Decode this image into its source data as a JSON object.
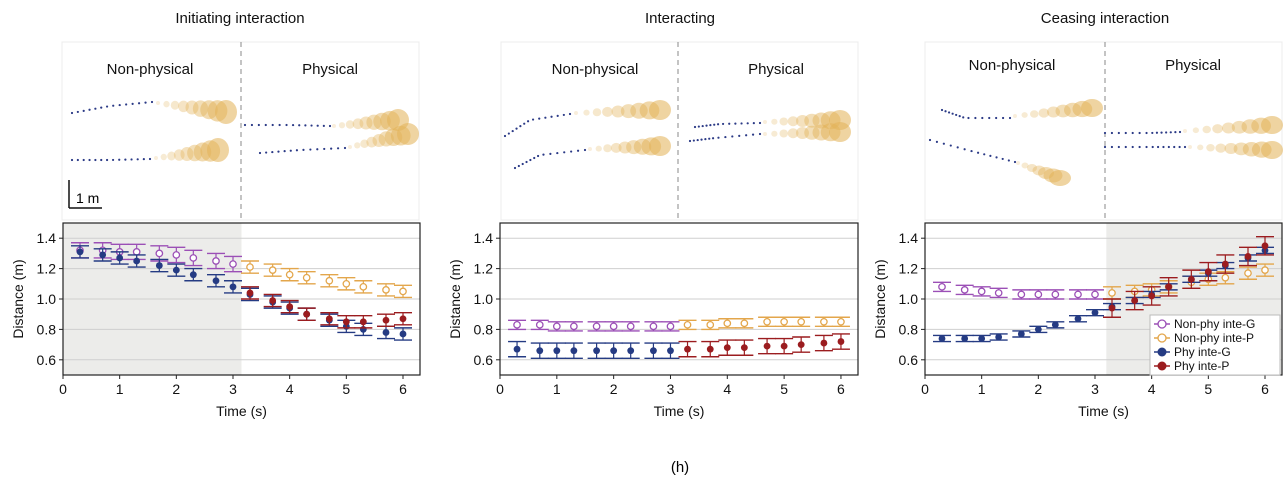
{
  "caption": "(h)",
  "scale_bar_label": "1 m",
  "colors": {
    "nonphy_g": "#9b4fb6",
    "nonphy_p": "#e3a64b",
    "phy_g": "#253b83",
    "phy_p": "#9b1c1f",
    "grid": "#cfcfcf",
    "shade": "#ececea",
    "traj_dot": "#2b3a86",
    "blob": "#e2b35a"
  },
  "panels": [
    {
      "title": "Initiating interaction",
      "region_left": "Non-physical",
      "region_right": "Physical",
      "show_scale_bar": true
    },
    {
      "title": "Interacting",
      "region_left": "Non-physical",
      "region_right": "Physical",
      "show_scale_bar": false
    },
    {
      "title": "Ceasing interaction",
      "region_left": "Non-physical",
      "region_right": "Physical",
      "show_scale_bar": false
    }
  ],
  "chart_data": [
    {
      "type": "scatter",
      "xlabel": "Time (s)",
      "ylabel": "Distance (m)",
      "xlim": [
        0,
        6.3
      ],
      "ylim": [
        0.5,
        1.5
      ],
      "x_ticks": [
        0,
        1,
        2,
        3,
        4,
        5,
        6
      ],
      "y_ticks": [
        0.6,
        0.8,
        1.0,
        1.2,
        1.4
      ],
      "y_tick_labels": [
        "0.6",
        "0.8",
        "1.0",
        "1.2",
        "1.4"
      ],
      "grid": true,
      "shaded_x": [
        0,
        3.15
      ],
      "series": [
        {
          "color_key": "nonphy_g",
          "marker": "open",
          "x": [
            0.3,
            0.7,
            1.0,
            1.3,
            1.7,
            2.0,
            2.3,
            2.7,
            3.0
          ],
          "y": [
            1.32,
            1.32,
            1.31,
            1.31,
            1.3,
            1.29,
            1.27,
            1.25,
            1.23
          ],
          "err": 0.05
        },
        {
          "color_key": "nonphy_p",
          "marker": "open",
          "x": [
            3.3,
            3.7,
            4.0,
            4.3,
            4.7,
            5.0,
            5.3,
            5.7,
            6.0
          ],
          "y": [
            1.21,
            1.19,
            1.16,
            1.14,
            1.12,
            1.1,
            1.08,
            1.06,
            1.05
          ],
          "err": 0.04
        },
        {
          "color_key": "phy_g",
          "marker": "filled",
          "x": [
            0.3,
            0.7,
            1.0,
            1.3,
            1.7,
            2.0,
            2.3,
            2.7,
            3.0,
            3.3,
            3.7,
            4.0,
            4.3,
            4.7,
            5.0,
            5.3,
            5.7,
            6.0
          ],
          "y": [
            1.31,
            1.29,
            1.27,
            1.25,
            1.22,
            1.19,
            1.16,
            1.12,
            1.08,
            1.03,
            0.98,
            0.94,
            0.9,
            0.86,
            0.82,
            0.8,
            0.78,
            0.77
          ],
          "err": 0.04
        },
        {
          "color_key": "phy_p",
          "marker": "filled",
          "x": [
            3.3,
            3.7,
            4.0,
            4.3,
            4.7,
            5.0,
            5.3,
            5.7,
            6.0
          ],
          "y": [
            1.04,
            0.99,
            0.95,
            0.9,
            0.87,
            0.85,
            0.85,
            0.86,
            0.87
          ],
          "err": 0.04
        }
      ]
    },
    {
      "type": "scatter",
      "xlabel": "Time (s)",
      "ylabel": "Distance (m)",
      "xlim": [
        0,
        6.3
      ],
      "ylim": [
        0.5,
        1.5
      ],
      "x_ticks": [
        0,
        1,
        2,
        3,
        4,
        5,
        6
      ],
      "y_ticks": [
        0.6,
        0.8,
        1.0,
        1.2,
        1.4
      ],
      "y_tick_labels": [
        "0.6",
        "0.8",
        "1.0",
        "1.2",
        "1.4"
      ],
      "grid": true,
      "shaded_x": null,
      "series": [
        {
          "color_key": "nonphy_g",
          "marker": "open",
          "x": [
            0.3,
            0.7,
            1.0,
            1.3,
            1.7,
            2.0,
            2.3,
            2.7,
            3.0
          ],
          "y": [
            0.83,
            0.83,
            0.82,
            0.82,
            0.82,
            0.82,
            0.82,
            0.82,
            0.82
          ],
          "err": 0.03
        },
        {
          "color_key": "nonphy_p",
          "marker": "open",
          "x": [
            3.3,
            3.7,
            4.0,
            4.3,
            4.7,
            5.0,
            5.3,
            5.7,
            6.0
          ],
          "y": [
            0.83,
            0.83,
            0.84,
            0.84,
            0.85,
            0.85,
            0.85,
            0.85,
            0.85
          ],
          "err": 0.03
        },
        {
          "color_key": "phy_g",
          "marker": "filled",
          "x": [
            0.3,
            0.7,
            1.0,
            1.3,
            1.7,
            2.0,
            2.3,
            2.7,
            3.0
          ],
          "y": [
            0.67,
            0.66,
            0.66,
            0.66,
            0.66,
            0.66,
            0.66,
            0.66,
            0.66
          ],
          "err": 0.05
        },
        {
          "color_key": "phy_p",
          "marker": "filled",
          "x": [
            3.3,
            3.7,
            4.0,
            4.3,
            4.7,
            5.0,
            5.3,
            5.7,
            6.0
          ],
          "y": [
            0.67,
            0.67,
            0.68,
            0.68,
            0.69,
            0.69,
            0.7,
            0.71,
            0.72
          ],
          "err": 0.05
        }
      ]
    },
    {
      "type": "scatter",
      "xlabel": "Time (s)",
      "ylabel": "Distance (m)",
      "xlim": [
        0,
        6.3
      ],
      "ylim": [
        0.5,
        1.5
      ],
      "x_ticks": [
        0,
        1,
        2,
        3,
        4,
        5,
        6
      ],
      "y_ticks": [
        0.6,
        0.8,
        1.0,
        1.2,
        1.4
      ],
      "y_tick_labels": [
        "0.6",
        "0.8",
        "1.0",
        "1.2",
        "1.4"
      ],
      "grid": true,
      "shaded_x": [
        3.2,
        6.3
      ],
      "legend_placement": "bottom-right",
      "legend": [
        {
          "label": "Non-phy inte-G",
          "color_key": "nonphy_g",
          "marker": "open"
        },
        {
          "label": "Non-phy inte-P",
          "color_key": "nonphy_p",
          "marker": "open"
        },
        {
          "label": "Phy inte-G",
          "color_key": "phy_g",
          "marker": "filled"
        },
        {
          "label": "Phy inte-P",
          "color_key": "phy_p",
          "marker": "filled"
        }
      ],
      "series": [
        {
          "color_key": "nonphy_g",
          "marker": "open",
          "x": [
            0.3,
            0.7,
            1.0,
            1.3,
            1.7,
            2.0,
            2.3,
            2.7,
            3.0
          ],
          "y": [
            1.08,
            1.06,
            1.05,
            1.04,
            1.03,
            1.03,
            1.03,
            1.03,
            1.03
          ],
          "err": 0.03
        },
        {
          "color_key": "nonphy_p",
          "marker": "open",
          "x": [
            3.3,
            3.7,
            4.0,
            4.3,
            4.7,
            5.0,
            5.3,
            5.7,
            6.0
          ],
          "y": [
            1.04,
            1.05,
            1.06,
            1.08,
            1.11,
            1.13,
            1.14,
            1.17,
            1.19
          ],
          "err": 0.04
        },
        {
          "color_key": "phy_g",
          "marker": "filled",
          "x": [
            0.3,
            0.7,
            1.0,
            1.3,
            1.7,
            2.0,
            2.3,
            2.7,
            3.0,
            3.3,
            3.7,
            4.0,
            4.3,
            4.7,
            5.0,
            5.3,
            5.7,
            6.0
          ],
          "y": [
            0.74,
            0.74,
            0.74,
            0.75,
            0.77,
            0.8,
            0.83,
            0.87,
            0.91,
            0.95,
            0.99,
            1.03,
            1.08,
            1.13,
            1.17,
            1.22,
            1.27,
            1.32
          ],
          "err": 0.02
        },
        {
          "color_key": "phy_p",
          "marker": "filled",
          "x": [
            3.3,
            3.7,
            4.0,
            4.3,
            4.7,
            5.0,
            5.3,
            5.7,
            6.0
          ],
          "y": [
            0.94,
            0.99,
            1.02,
            1.08,
            1.13,
            1.18,
            1.23,
            1.28,
            1.35
          ],
          "err": 0.06
        }
      ]
    }
  ]
}
